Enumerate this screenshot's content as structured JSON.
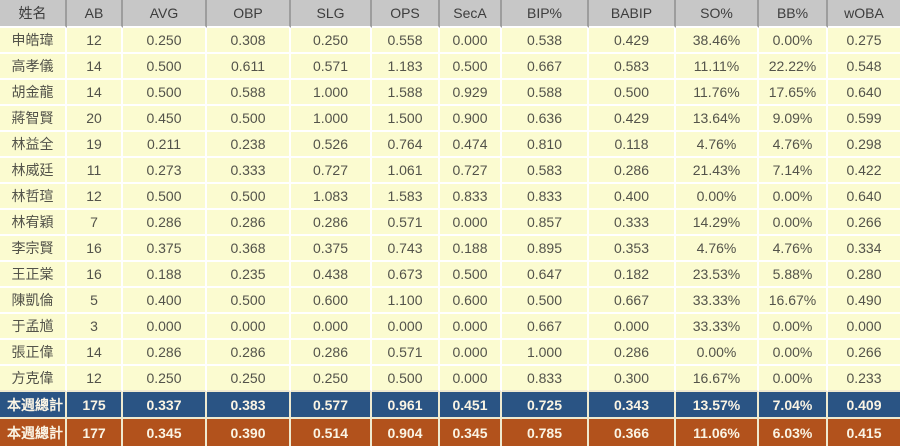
{
  "chart_data": {
    "type": "table",
    "title": "",
    "columns": [
      "姓名",
      "AB",
      "AVG",
      "OBP",
      "SLG",
      "OPS",
      "SecA",
      "BIP%",
      "BABIP",
      "SO%",
      "BB%",
      "wOBA"
    ],
    "rows": [
      [
        "申皓瑋",
        "12",
        "0.250",
        "0.308",
        "0.250",
        "0.558",
        "0.000",
        "0.538",
        "0.429",
        "38.46%",
        "0.00%",
        "0.275"
      ],
      [
        "高孝儀",
        "14",
        "0.500",
        "0.611",
        "0.571",
        "1.183",
        "0.500",
        "0.667",
        "0.583",
        "11.11%",
        "22.22%",
        "0.548"
      ],
      [
        "胡金龍",
        "14",
        "0.500",
        "0.588",
        "1.000",
        "1.588",
        "0.929",
        "0.588",
        "0.500",
        "11.76%",
        "17.65%",
        "0.640"
      ],
      [
        "蔣智賢",
        "20",
        "0.450",
        "0.500",
        "1.000",
        "1.500",
        "0.900",
        "0.636",
        "0.429",
        "13.64%",
        "9.09%",
        "0.599"
      ],
      [
        "林益全",
        "19",
        "0.211",
        "0.238",
        "0.526",
        "0.764",
        "0.474",
        "0.810",
        "0.118",
        "4.76%",
        "4.76%",
        "0.298"
      ],
      [
        "林威廷",
        "11",
        "0.273",
        "0.333",
        "0.727",
        "1.061",
        "0.727",
        "0.583",
        "0.286",
        "21.43%",
        "7.14%",
        "0.422"
      ],
      [
        "林哲瑄",
        "12",
        "0.500",
        "0.500",
        "1.083",
        "1.583",
        "0.833",
        "0.833",
        "0.400",
        "0.00%",
        "0.00%",
        "0.640"
      ],
      [
        "林宥穎",
        "7",
        "0.286",
        "0.286",
        "0.286",
        "0.571",
        "0.000",
        "0.857",
        "0.333",
        "14.29%",
        "0.00%",
        "0.266"
      ],
      [
        "李宗賢",
        "16",
        "0.375",
        "0.368",
        "0.375",
        "0.743",
        "0.188",
        "0.895",
        "0.353",
        "4.76%",
        "4.76%",
        "0.334"
      ],
      [
        "王正棠",
        "16",
        "0.188",
        "0.235",
        "0.438",
        "0.673",
        "0.500",
        "0.647",
        "0.182",
        "23.53%",
        "5.88%",
        "0.280"
      ],
      [
        "陳凱倫",
        "5",
        "0.400",
        "0.500",
        "0.600",
        "1.100",
        "0.600",
        "0.500",
        "0.667",
        "33.33%",
        "16.67%",
        "0.490"
      ],
      [
        "于孟馗",
        "3",
        "0.000",
        "0.000",
        "0.000",
        "0.000",
        "0.000",
        "0.667",
        "0.000",
        "33.33%",
        "0.00%",
        "0.000"
      ],
      [
        "張正偉",
        "14",
        "0.286",
        "0.286",
        "0.286",
        "0.571",
        "0.000",
        "1.000",
        "0.286",
        "0.00%",
        "0.00%",
        "0.266"
      ],
      [
        "方克偉",
        "12",
        "0.250",
        "0.250",
        "0.250",
        "0.500",
        "0.000",
        "0.833",
        "0.300",
        "16.67%",
        "0.00%",
        "0.233"
      ]
    ],
    "totals": [
      {
        "label": "本週總計",
        "variant": "blue",
        "values": [
          "175",
          "0.337",
          "0.383",
          "0.577",
          "0.961",
          "0.451",
          "0.725",
          "0.343",
          "13.57%",
          "7.04%",
          "0.409"
        ]
      },
      {
        "label": "本週總計",
        "variant": "orange",
        "values": [
          "177",
          "0.345",
          "0.390",
          "0.514",
          "0.904",
          "0.345",
          "0.785",
          "0.366",
          "11.06%",
          "6.03%",
          "0.415"
        ]
      }
    ],
    "layout_hints": {
      "grid": "on",
      "legend": "none"
    }
  },
  "colors": {
    "header_bg": "#c7c7c7",
    "header_divider": "#9d9d9d",
    "header_text": "#3d3d3d",
    "row_bg": "#fbfbd0",
    "row_text": "#53534a",
    "total_blue_bg": "#2a5484",
    "total_orange_bg": "#b2521c",
    "total_text": "#faf4e4",
    "total_gap": "#efead0"
  }
}
